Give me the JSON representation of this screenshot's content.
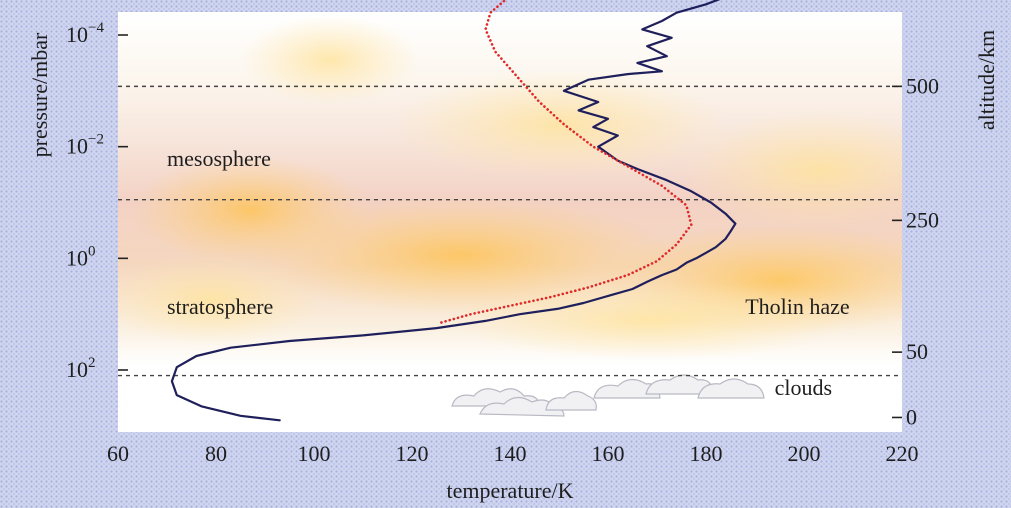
{
  "chart_data": {
    "type": "line",
    "xlabel": "temperature/K",
    "ylabel": "pressure/mbar",
    "y2label": "altitude/km",
    "xlim": [
      60,
      220
    ],
    "x_ticks": [
      60,
      80,
      100,
      120,
      140,
      160,
      180,
      200,
      220
    ],
    "y_scale": "log",
    "y_inverted": true,
    "y_ticks": [
      {
        "exp": -4,
        "label_base": "10",
        "label_exp": "−4"
      },
      {
        "exp": -2,
        "label_base": "10",
        "label_exp": "−2"
      },
      {
        "exp": 0,
        "label_base": "10",
        "label_exp": "0"
      },
      {
        "exp": 2,
        "label_base": "10",
        "label_exp": "2"
      }
    ],
    "altitude_ticks": [
      {
        "km": 500,
        "label": "500",
        "log_p": -3.08
      },
      {
        "km": 250,
        "label": "250",
        "log_p": -0.68
      },
      {
        "km": 50,
        "label": "50",
        "log_p": 1.68
      },
      {
        "km": 0,
        "label": "0",
        "log_p": 2.85
      }
    ],
    "dashed_levels_log_p": [
      -3.08,
      -1.05,
      2.1
    ],
    "region_labels": [
      {
        "text": "mesosphere",
        "x": 70,
        "log_p": -1.8
      },
      {
        "text": "stratosphere",
        "x": 70,
        "log_p": 0.85
      },
      {
        "text": "Tholin haze",
        "x": 188,
        "log_p": 0.85
      },
      {
        "text": "clouds",
        "x": 194,
        "log_p": 2.3
      }
    ],
    "series": [
      {
        "color": "#1f1f5c",
        "style": "solid",
        "points": [
          [
            93,
            2.9
          ],
          [
            85,
            2.82
          ],
          [
            77,
            2.65
          ],
          [
            72,
            2.45
          ],
          [
            71,
            2.2
          ],
          [
            72,
            1.95
          ],
          [
            76,
            1.75
          ],
          [
            83,
            1.6
          ],
          [
            95,
            1.48
          ],
          [
            110,
            1.38
          ],
          [
            125,
            1.25
          ],
          [
            135,
            1.12
          ],
          [
            142,
            1.0
          ],
          [
            150,
            0.9
          ],
          [
            155,
            0.8
          ],
          [
            161,
            0.65
          ],
          [
            165,
            0.55
          ],
          [
            168,
            0.42
          ],
          [
            171,
            0.3
          ],
          [
            174,
            0.2
          ],
          [
            176,
            0.08
          ],
          [
            178,
            0.0
          ],
          [
            180,
            -0.1
          ],
          [
            182,
            -0.2
          ],
          [
            184,
            -0.35
          ],
          [
            185,
            -0.48
          ],
          [
            186,
            -0.62
          ],
          [
            184,
            -0.8
          ],
          [
            181,
            -1.0
          ],
          [
            177,
            -1.2
          ],
          [
            172,
            -1.4
          ],
          [
            166,
            -1.6
          ],
          [
            162,
            -1.75
          ],
          [
            158,
            -2.0
          ],
          [
            162,
            -2.2
          ],
          [
            157,
            -2.35
          ],
          [
            160,
            -2.5
          ],
          [
            154,
            -2.65
          ],
          [
            158,
            -2.8
          ],
          [
            151,
            -3.0
          ],
          [
            156,
            -3.2
          ],
          [
            164,
            -3.3
          ],
          [
            171,
            -3.35
          ],
          [
            166,
            -3.5
          ],
          [
            172,
            -3.62
          ],
          [
            168,
            -3.8
          ],
          [
            173,
            -3.95
          ],
          [
            167,
            -4.1
          ],
          [
            171,
            -4.25
          ],
          [
            174,
            -4.4
          ],
          [
            180,
            -4.55
          ],
          [
            183,
            -4.65
          ]
        ]
      },
      {
        "color": "#e02a2a",
        "style": "dotted",
        "points": [
          [
            126,
            1.15
          ],
          [
            132,
            1.0
          ],
          [
            140,
            0.85
          ],
          [
            148,
            0.7
          ],
          [
            156,
            0.52
          ],
          [
            164,
            0.3
          ],
          [
            170,
            0.05
          ],
          [
            174,
            -0.25
          ],
          [
            177,
            -0.6
          ],
          [
            176,
            -0.95
          ],
          [
            171,
            -1.3
          ],
          [
            164,
            -1.65
          ],
          [
            157,
            -2.0
          ],
          [
            151,
            -2.4
          ],
          [
            146,
            -2.8
          ],
          [
            141,
            -3.3
          ],
          [
            137,
            -3.7
          ],
          [
            135,
            -4.1
          ],
          [
            136,
            -4.4
          ],
          [
            140,
            -4.7
          ]
        ]
      }
    ]
  }
}
